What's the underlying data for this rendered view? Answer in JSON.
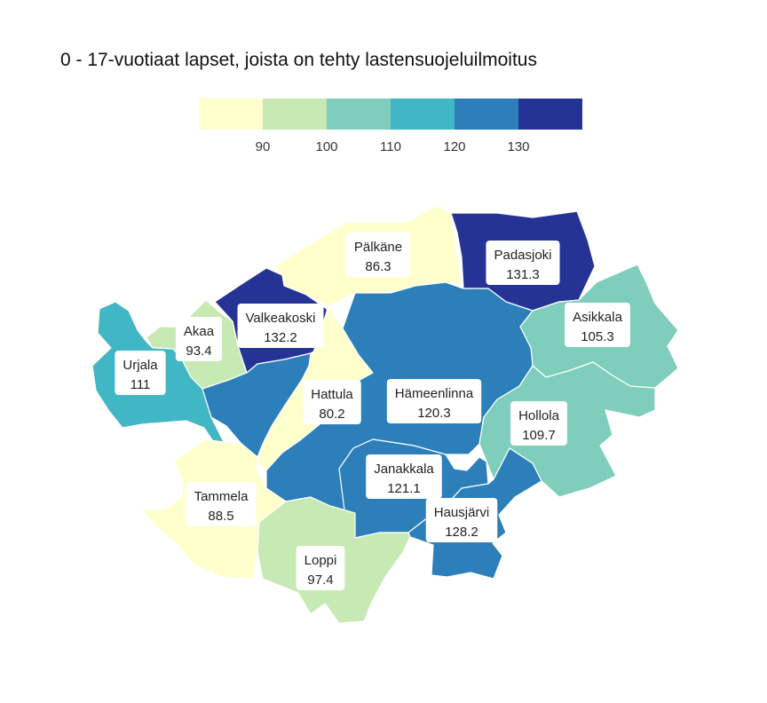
{
  "title": "0 - 17-vuotiaat lapset, joista on tehty lastensuojeluilmoitus",
  "legend": {
    "bins": [
      {
        "color": "#ffffcc"
      },
      {
        "color": "#c7e9b4"
      },
      {
        "color": "#7fcdbb"
      },
      {
        "color": "#41b6c4"
      },
      {
        "color": "#2c7fb8"
      },
      {
        "color": "#253494"
      }
    ],
    "ticks": [
      "90",
      "100",
      "110",
      "120",
      "130"
    ]
  },
  "municipalities": [
    {
      "name": "Pälkäne",
      "value": "86.3",
      "color": "#ffffcc"
    },
    {
      "name": "Padasjoki",
      "value": "131.3",
      "color": "#253494"
    },
    {
      "name": "Valkeakoski",
      "value": "132.2",
      "color": "#253494"
    },
    {
      "name": "Akaa",
      "value": "93.4",
      "color": "#c7e9b4"
    },
    {
      "name": "Urjala",
      "value": "111",
      "color": "#41b6c4"
    },
    {
      "name": "Asikkala",
      "value": "105.3",
      "color": "#7fcdbb"
    },
    {
      "name": "Hattula",
      "value": "80.2",
      "color": "#ffffcc"
    },
    {
      "name": "Hämeenlinna",
      "value": "120.3",
      "color": "#2c7fb8"
    },
    {
      "name": "Hollola",
      "value": "109.7",
      "color": "#7fcdbb"
    },
    {
      "name": "Janakkala",
      "value": "121.1",
      "color": "#2c7fb8"
    },
    {
      "name": "Tammela",
      "value": "88.5",
      "color": "#ffffcc"
    },
    {
      "name": "Hausjärvi",
      "value": "128.2",
      "color": "#2c7fb8"
    },
    {
      "name": "Loppi",
      "value": "97.4",
      "color": "#c7e9b4"
    }
  ]
}
